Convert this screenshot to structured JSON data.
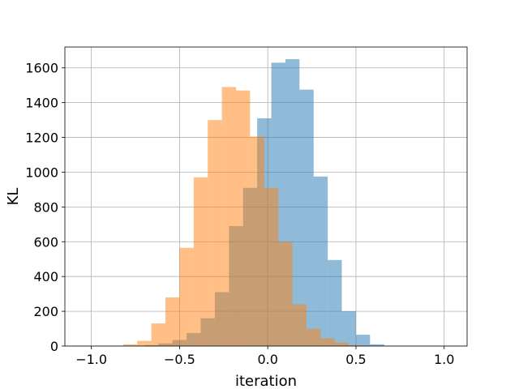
{
  "chart_data": {
    "type": "histogram",
    "title": "",
    "xlabel": "iteration",
    "ylabel": "KL",
    "xlim": [
      -1.15,
      1.13
    ],
    "ylim": [
      0,
      1720
    ],
    "xticks": [
      -1.0,
      -0.5,
      0.0,
      0.5,
      1.0
    ],
    "xtick_labels": [
      "−1.0",
      "−0.5",
      "0.0",
      "0.5",
      "1.0"
    ],
    "yticks": [
      0,
      200,
      400,
      600,
      800,
      1000,
      1200,
      1400,
      1600
    ],
    "ytick_labels": [
      "0",
      "200",
      "400",
      "600",
      "800",
      "1000",
      "1200",
      "1400",
      "1600"
    ],
    "grid": true,
    "legend": "none",
    "series": [
      {
        "color": "#1f77b4",
        "alpha": 0.5,
        "bin_edges": [
          -0.7,
          -0.62,
          -0.54,
          -0.46,
          -0.38,
          -0.3,
          -0.22,
          -0.14,
          -0.06,
          0.02,
          0.1,
          0.18,
          0.26,
          0.34,
          0.42,
          0.5,
          0.58,
          0.66
        ],
        "counts": [
          5,
          15,
          35,
          75,
          160,
          310,
          690,
          910,
          1310,
          1630,
          1650,
          1475,
          975,
          495,
          200,
          65,
          10
        ]
      },
      {
        "color": "#ff7f0e",
        "alpha": 0.5,
        "bin_edges": [
          -0.82,
          -0.74,
          -0.66,
          -0.58,
          -0.5,
          -0.42,
          -0.34,
          -0.26,
          -0.18,
          -0.1,
          -0.02,
          0.06,
          0.14,
          0.22,
          0.3,
          0.38,
          0.46,
          0.54
        ],
        "counts": [
          10,
          30,
          130,
          280,
          565,
          970,
          1300,
          1490,
          1470,
          1205,
          910,
          600,
          240,
          100,
          45,
          20,
          5
        ]
      }
    ]
  }
}
